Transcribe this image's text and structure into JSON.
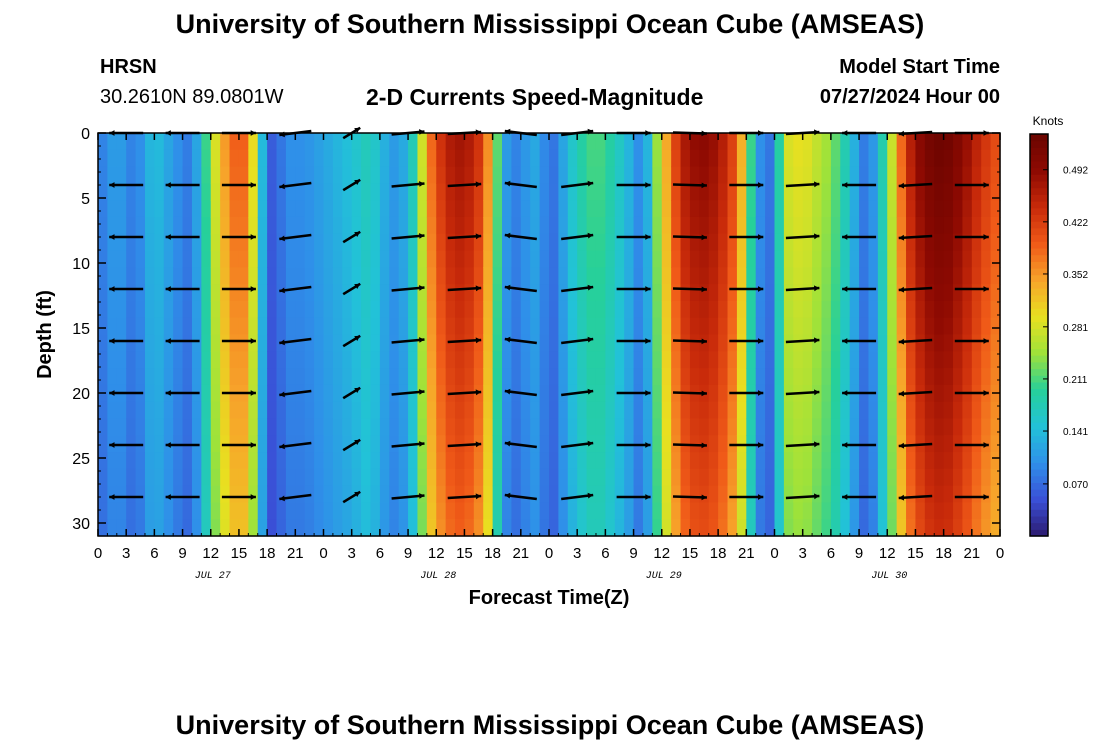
{
  "header": {
    "title": "University of Southern Mississippi Ocean Cube (AMSEAS)",
    "station": "HRSN",
    "coords": "30.2610N  89.0801W",
    "subtitle": "2-D Currents Speed-Magnitude",
    "model_label": "Model Start Time",
    "model_time": "07/27/2024 Hour 00"
  },
  "footer": {
    "title": "University of Southern Mississippi Ocean Cube (AMSEAS)"
  },
  "chart_data": {
    "type": "heatmap",
    "title": "2-D Currents Speed-Magnitude",
    "xlabel": "Forecast Time(Z)",
    "ylabel": "Depth (ft)",
    "x_range_hours": [
      0,
      96
    ],
    "y_range_ft": [
      0,
      31
    ],
    "x_tick_labels": [
      "0",
      "3",
      "6",
      "9",
      "12",
      "15",
      "18",
      "21",
      "0",
      "3",
      "6",
      "9",
      "12",
      "15",
      "18",
      "21",
      "0",
      "3",
      "6",
      "9",
      "12",
      "15",
      "18",
      "21",
      "0",
      "3",
      "6",
      "9",
      "12",
      "15",
      "18",
      "21",
      "0"
    ],
    "y_ticks": [
      0,
      5,
      10,
      15,
      20,
      25,
      30
    ],
    "date_labels": [
      {
        "label": "JUL 27",
        "hour": 12
      },
      {
        "label": "JUL 28",
        "hour": 36
      },
      {
        "label": "JUL 29",
        "hour": 60
      },
      {
        "label": "JUL 30",
        "hour": 84
      }
    ],
    "colorbar": {
      "unit": "Knots",
      "min": 0.0,
      "max": 0.54,
      "ticks": [
        0.07,
        0.141,
        0.211,
        0.281,
        0.352,
        0.422,
        0.492
      ],
      "tick_labels": [
        "0.070",
        "0.141",
        "0.211",
        "0.281",
        "0.352",
        "0.422",
        "0.492"
      ],
      "palette": [
        "#2c1a6e",
        "#3a4fd6",
        "#2f8fe9",
        "#22c2d8",
        "#26d09a",
        "#9ee23a",
        "#e8e020",
        "#f7a42a",
        "#f05a18",
        "#c82a0a",
        "#8e0a02",
        "#6a0400"
      ]
    },
    "speed_profile_surface": [
      {
        "hour": 0,
        "v": 0.08
      },
      {
        "hour": 1,
        "v": 0.1
      },
      {
        "hour": 2,
        "v": 0.12
      },
      {
        "hour": 3,
        "v": 0.1
      },
      {
        "hour": 4,
        "v": 0.08
      },
      {
        "hour": 5,
        "v": 0.12
      },
      {
        "hour": 6,
        "v": 0.15
      },
      {
        "hour": 7,
        "v": 0.13
      },
      {
        "hour": 8,
        "v": 0.11
      },
      {
        "hour": 9,
        "v": 0.09
      },
      {
        "hour": 10,
        "v": 0.08
      },
      {
        "hour": 11,
        "v": 0.16
      },
      {
        "hour": 12,
        "v": 0.25
      },
      {
        "hour": 13,
        "v": 0.32
      },
      {
        "hour": 14,
        "v": 0.38
      },
      {
        "hour": 15,
        "v": 0.4
      },
      {
        "hour": 16,
        "v": 0.38
      },
      {
        "hour": 17,
        "v": 0.22
      },
      {
        "hour": 18,
        "v": 0.06
      },
      {
        "hour": 19,
        "v": 0.06
      },
      {
        "hour": 20,
        "v": 0.1
      },
      {
        "hour": 22,
        "v": 0.1
      },
      {
        "hour": 24,
        "v": 0.12
      },
      {
        "hour": 27,
        "v": 0.15
      },
      {
        "hour": 29,
        "v": 0.18
      },
      {
        "hour": 30,
        "v": 0.14
      },
      {
        "hour": 32,
        "v": 0.1
      },
      {
        "hour": 34,
        "v": 0.2
      },
      {
        "hour": 35,
        "v": 0.36
      },
      {
        "hour": 37,
        "v": 0.46
      },
      {
        "hour": 39,
        "v": 0.48
      },
      {
        "hour": 41,
        "v": 0.42
      },
      {
        "hour": 42,
        "v": 0.3
      },
      {
        "hour": 43,
        "v": 0.14
      },
      {
        "hour": 44,
        "v": 0.08
      },
      {
        "hour": 45,
        "v": 0.1
      },
      {
        "hour": 47,
        "v": 0.13
      },
      {
        "hour": 48,
        "v": 0.06
      },
      {
        "hour": 49,
        "v": 0.1
      },
      {
        "hour": 51,
        "v": 0.18
      },
      {
        "hour": 53,
        "v": 0.22
      },
      {
        "hour": 55,
        "v": 0.18
      },
      {
        "hour": 57,
        "v": 0.12
      },
      {
        "hour": 58,
        "v": 0.08
      },
      {
        "hour": 60,
        "v": 0.3
      },
      {
        "hour": 62,
        "v": 0.46
      },
      {
        "hour": 64,
        "v": 0.5
      },
      {
        "hour": 66,
        "v": 0.48
      },
      {
        "hour": 68,
        "v": 0.4
      },
      {
        "hour": 70,
        "v": 0.14
      },
      {
        "hour": 71,
        "v": 0.06
      },
      {
        "hour": 72,
        "v": 0.1
      },
      {
        "hour": 73,
        "v": 0.28
      },
      {
        "hour": 75,
        "v": 0.3
      },
      {
        "hour": 78,
        "v": 0.24
      },
      {
        "hour": 80,
        "v": 0.16
      },
      {
        "hour": 81,
        "v": 0.1
      },
      {
        "hour": 82,
        "v": 0.07
      },
      {
        "hour": 84,
        "v": 0.22
      },
      {
        "hour": 86,
        "v": 0.44
      },
      {
        "hour": 88,
        "v": 0.52
      },
      {
        "hour": 90,
        "v": 0.54
      },
      {
        "hour": 92,
        "v": 0.5
      },
      {
        "hour": 94,
        "v": 0.44
      },
      {
        "hour": 96,
        "v": 0.4
      }
    ],
    "vector_depths_ft": [
      0,
      4,
      8,
      12,
      16,
      20,
      24,
      28
    ],
    "vector_hours": [
      3,
      9,
      15,
      21,
      27,
      33,
      39,
      45,
      51,
      57,
      63,
      69,
      75,
      81,
      87,
      93
    ],
    "vector_direction_deg_by_hour": [
      180,
      180,
      0,
      200,
      60,
      15,
      10,
      160,
      20,
      0,
      355,
      0,
      10,
      180,
      190,
      0
    ]
  }
}
